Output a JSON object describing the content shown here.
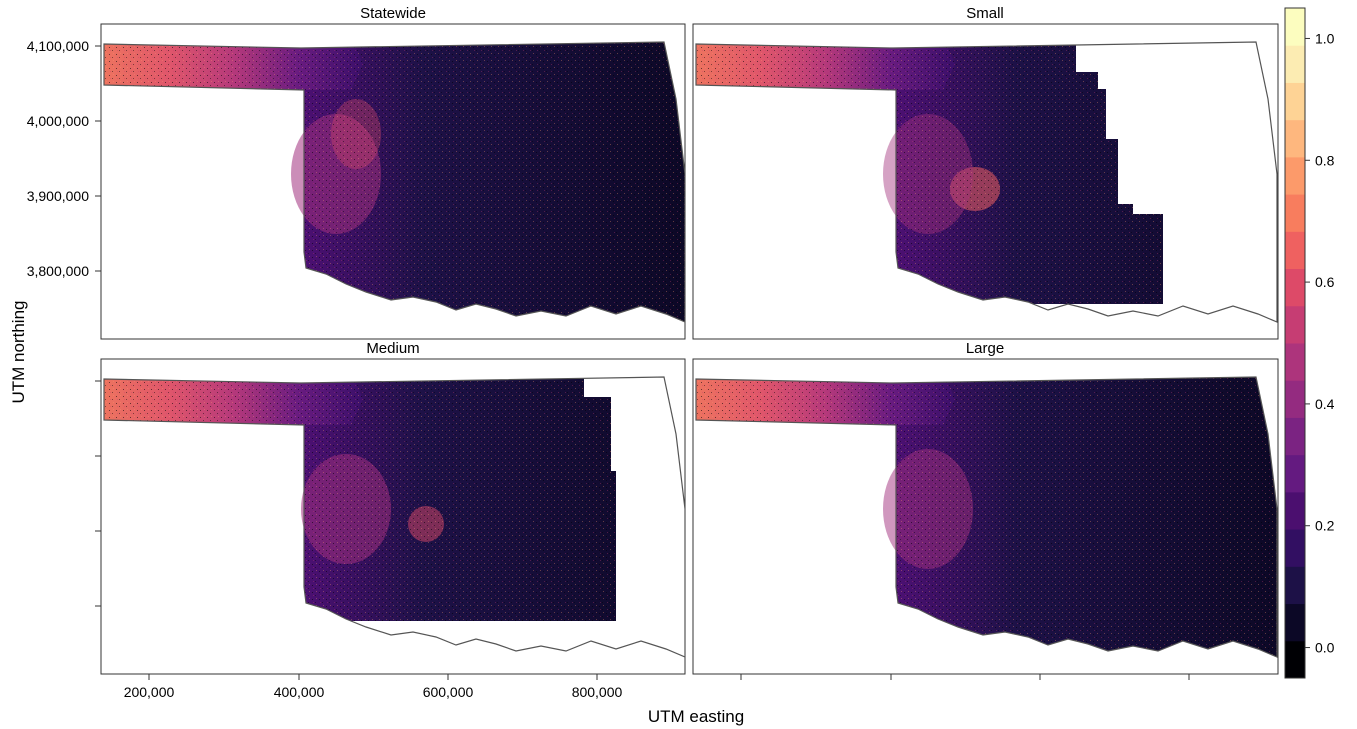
{
  "panels": [
    {
      "id": "statewide",
      "title": "Statewide",
      "coverage": 1.0
    },
    {
      "id": "small",
      "title": "Small",
      "coverage": 0.66
    },
    {
      "id": "medium",
      "title": "Medium",
      "coverage": 0.8
    },
    {
      "id": "large",
      "title": "Large",
      "coverage": 1.0
    }
  ],
  "axes": {
    "xlabel": "UTM easting",
    "ylabel": "UTM northing",
    "xticks": [
      "200,000",
      "400,000",
      "600,000",
      "800,000"
    ],
    "yticks": [
      "4,100,000",
      "4,000,000",
      "3,900,000",
      "3,800,000"
    ]
  },
  "colorbar": {
    "ticks": [
      "1.0",
      "0.8",
      "0.6",
      "0.4",
      "0.2",
      "0.0"
    ],
    "range": [
      -0.05,
      1.05
    ],
    "palette": [
      "#000004",
      "#0c0826",
      "#1d1147",
      "#320f62",
      "#4b0f6f",
      "#641a80",
      "#7b2382",
      "#942b80",
      "#ad347c",
      "#c63d73",
      "#dd4a68",
      "#ef6160",
      "#f87d5e",
      "#fc9a6a",
      "#feb77e",
      "#fed395",
      "#fcecb2",
      "#fcfdbf"
    ]
  }
}
